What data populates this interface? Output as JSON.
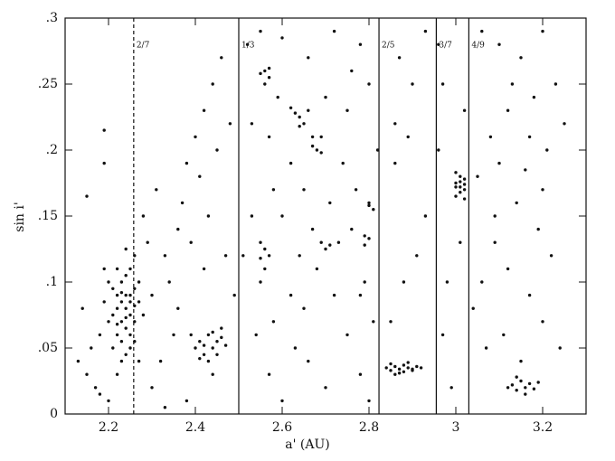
{
  "chart_data": {
    "type": "scatter",
    "x_label": "a' (AU)",
    "y_label": "sin i'",
    "color": "#111111",
    "xlim": [
      2.1,
      3.3
    ],
    "ylim": [
      0,
      0.3
    ],
    "xticks": [
      2.2,
      2.4,
      2.6,
      2.8,
      3,
      3.2
    ],
    "yticks": [
      0,
      {
        "value": 0.05,
        "label": ".05"
      },
      {
        "value": 0.1,
        "label": ".1"
      },
      {
        "value": 0.15,
        "label": ".15"
      },
      {
        "value": 0.2,
        "label": ".2"
      },
      {
        "value": 0.25,
        "label": ".25"
      },
      {
        "value": 0.3,
        "label": ".3"
      }
    ],
    "resonances": [
      {
        "label": "2/7",
        "a": 2.258,
        "dashed": true
      },
      {
        "label": "1/3",
        "a": 2.5,
        "dashed": false
      },
      {
        "label": "2/5",
        "a": 2.823,
        "dashed": false
      },
      {
        "label": "3/7",
        "a": 2.955,
        "dashed": false
      },
      {
        "label": "4/9",
        "a": 3.03,
        "dashed": false
      }
    ],
    "x": [
      2.22,
      2.23,
      2.24,
      2.25,
      2.24,
      2.23,
      2.25,
      2.26,
      2.22,
      2.21,
      2.24,
      2.25,
      2.23,
      2.26,
      2.22,
      2.25,
      2.24,
      2.23,
      2.21,
      2.26,
      2.2,
      2.19,
      2.25,
      2.24,
      2.27,
      2.28,
      2.22,
      2.24,
      2.18,
      2.2,
      2.26,
      2.23,
      2.27,
      2.21,
      2.19,
      2.25,
      2.24,
      2.22,
      2.26,
      2.23,
      2.15,
      2.17,
      2.16,
      2.14,
      2.13,
      2.18,
      2.2,
      2.22,
      2.15,
      2.19,
      2.19,
      2.3,
      2.32,
      2.35,
      2.3,
      2.33,
      2.36,
      2.28,
      2.31,
      2.38,
      2.4,
      2.42,
      2.44,
      2.46,
      2.37,
      2.41,
      2.45,
      2.48,
      2.34,
      2.39,
      2.43,
      2.47,
      2.49,
      2.44,
      2.38,
      2.33,
      2.29,
      2.27,
      2.36,
      2.42,
      2.4,
      2.41,
      2.42,
      2.43,
      2.44,
      2.45,
      2.46,
      2.47,
      2.45,
      2.43,
      2.39,
      2.41,
      2.46,
      2.44,
      2.42,
      2.52,
      2.55,
      2.6,
      2.66,
      2.72,
      2.78,
      2.8,
      2.75,
      2.7,
      2.62,
      2.58,
      2.53,
      2.55,
      2.54,
      2.57,
      2.6,
      2.63,
      2.65,
      2.68,
      2.72,
      2.75,
      2.78,
      2.8,
      2.81,
      2.79,
      2.77,
      2.74,
      2.71,
      2.67,
      2.64,
      2.6,
      2.57,
      2.53,
      2.59,
      2.69,
      2.76,
      2.82,
      2.66,
      2.7,
      2.73,
      2.62,
      2.58,
      2.51,
      2.76,
      2.65,
      2.55,
      2.56,
      2.57,
      2.56,
      2.57,
      2.55,
      2.56,
      2.55,
      2.56,
      2.57,
      2.63,
      2.64,
      2.65,
      2.66,
      2.64,
      2.62,
      2.67,
      2.68,
      2.69,
      2.67,
      2.69,
      2.7,
      2.71,
      2.79,
      2.8,
      2.79,
      2.8,
      2.81,
      2.8,
      2.78,
      2.84,
      2.85,
      2.86,
      2.87,
      2.88,
      2.89,
      2.9,
      2.91,
      2.85,
      2.87,
      2.88,
      2.86,
      2.89,
      2.9,
      2.92,
      2.86,
      2.87,
      2.9,
      2.93,
      2.88,
      2.85,
      2.91,
      2.89,
      2.93,
      2.86,
      2.97,
      2.96,
      2.98,
      2.97,
      2.99,
      3.01,
      3.02,
      2.96,
      3.0,
      3.01,
      3.02,
      3.01,
      3.0,
      3.02,
      3.01,
      3.0,
      3.02,
      3.01,
      3.0,
      3.02,
      3.06,
      3.1,
      3.15,
      3.2,
      3.23,
      3.18,
      3.12,
      3.08,
      3.05,
      3.1,
      3.16,
      3.21,
      3.14,
      3.19,
      3.09,
      3.06,
      3.12,
      3.17,
      3.22,
      3.2,
      3.11,
      3.07,
      3.15,
      3.24,
      3.04,
      3.13,
      3.17,
      3.09,
      3.2,
      3.25,
      3.12,
      3.13,
      3.14,
      3.15,
      3.16,
      3.17,
      3.18,
      3.14,
      3.16,
      3.19
    ],
    "values": [
      0.08,
      0.07,
      0.09,
      0.085,
      0.065,
      0.1,
      0.075,
      0.095,
      0.06,
      0.075,
      0.105,
      0.11,
      0.055,
      0.07,
      0.09,
      0.06,
      0.08,
      0.085,
      0.095,
      0.12,
      0.07,
      0.085,
      0.05,
      0.045,
      0.085,
      0.075,
      0.11,
      0.125,
      0.06,
      0.1,
      0.055,
      0.04,
      0.1,
      0.05,
      0.11,
      0.09,
      0.073,
      0.068,
      0.082,
      0.092,
      0.03,
      0.02,
      0.05,
      0.08,
      0.04,
      0.015,
      0.01,
      0.03,
      0.165,
      0.215,
      0.19,
      0.02,
      0.04,
      0.06,
      0.09,
      0.12,
      0.14,
      0.15,
      0.17,
      0.19,
      0.21,
      0.23,
      0.25,
      0.27,
      0.16,
      0.18,
      0.2,
      0.22,
      0.1,
      0.13,
      0.15,
      0.12,
      0.09,
      0.03,
      0.01,
      0.005,
      0.13,
      0.04,
      0.08,
      0.11,
      0.05,
      0.055,
      0.045,
      0.06,
      0.05,
      0.055,
      0.058,
      0.052,
      0.045,
      0.04,
      0.06,
      0.042,
      0.065,
      0.062,
      0.052,
      0.28,
      0.29,
      0.285,
      0.27,
      0.29,
      0.28,
      0.25,
      0.23,
      0.24,
      0.19,
      0.17,
      0.15,
      0.1,
      0.06,
      0.03,
      0.01,
      0.05,
      0.08,
      0.11,
      0.09,
      0.06,
      0.03,
      0.01,
      0.07,
      0.1,
      0.17,
      0.19,
      0.16,
      0.14,
      0.12,
      0.15,
      0.21,
      0.22,
      0.24,
      0.21,
      0.14,
      0.2,
      0.04,
      0.02,
      0.13,
      0.09,
      0.07,
      0.12,
      0.26,
      0.17,
      0.258,
      0.26,
      0.255,
      0.25,
      0.262,
      0.118,
      0.125,
      0.13,
      0.11,
      0.12,
      0.228,
      0.225,
      0.22,
      0.23,
      0.218,
      0.232,
      0.203,
      0.2,
      0.198,
      0.21,
      0.13,
      0.125,
      0.128,
      0.135,
      0.133,
      0.128,
      0.158,
      0.155,
      0.16,
      0.09,
      0.035,
      0.033,
      0.036,
      0.034,
      0.037,
      0.035,
      0.033,
      0.036,
      0.038,
      0.031,
      0.032,
      0.03,
      0.039,
      0.034,
      0.035,
      0.19,
      0.27,
      0.25,
      0.15,
      0.1,
      0.07,
      0.12,
      0.21,
      0.29,
      0.22,
      0.25,
      0.2,
      0.1,
      0.06,
      0.02,
      0.13,
      0.23,
      0.28,
      0.175,
      0.172,
      0.178,
      0.168,
      0.165,
      0.17,
      0.18,
      0.172,
      0.163,
      0.176,
      0.183,
      0.174,
      0.29,
      0.28,
      0.27,
      0.29,
      0.25,
      0.24,
      0.23,
      0.21,
      0.18,
      0.19,
      0.185,
      0.2,
      0.16,
      0.14,
      0.13,
      0.1,
      0.11,
      0.09,
      0.12,
      0.07,
      0.06,
      0.05,
      0.04,
      0.05,
      0.08,
      0.25,
      0.21,
      0.15,
      0.17,
      0.22,
      0.02,
      0.022,
      0.018,
      0.025,
      0.02,
      0.023,
      0.019,
      0.028,
      0.015,
      0.024
    ]
  }
}
